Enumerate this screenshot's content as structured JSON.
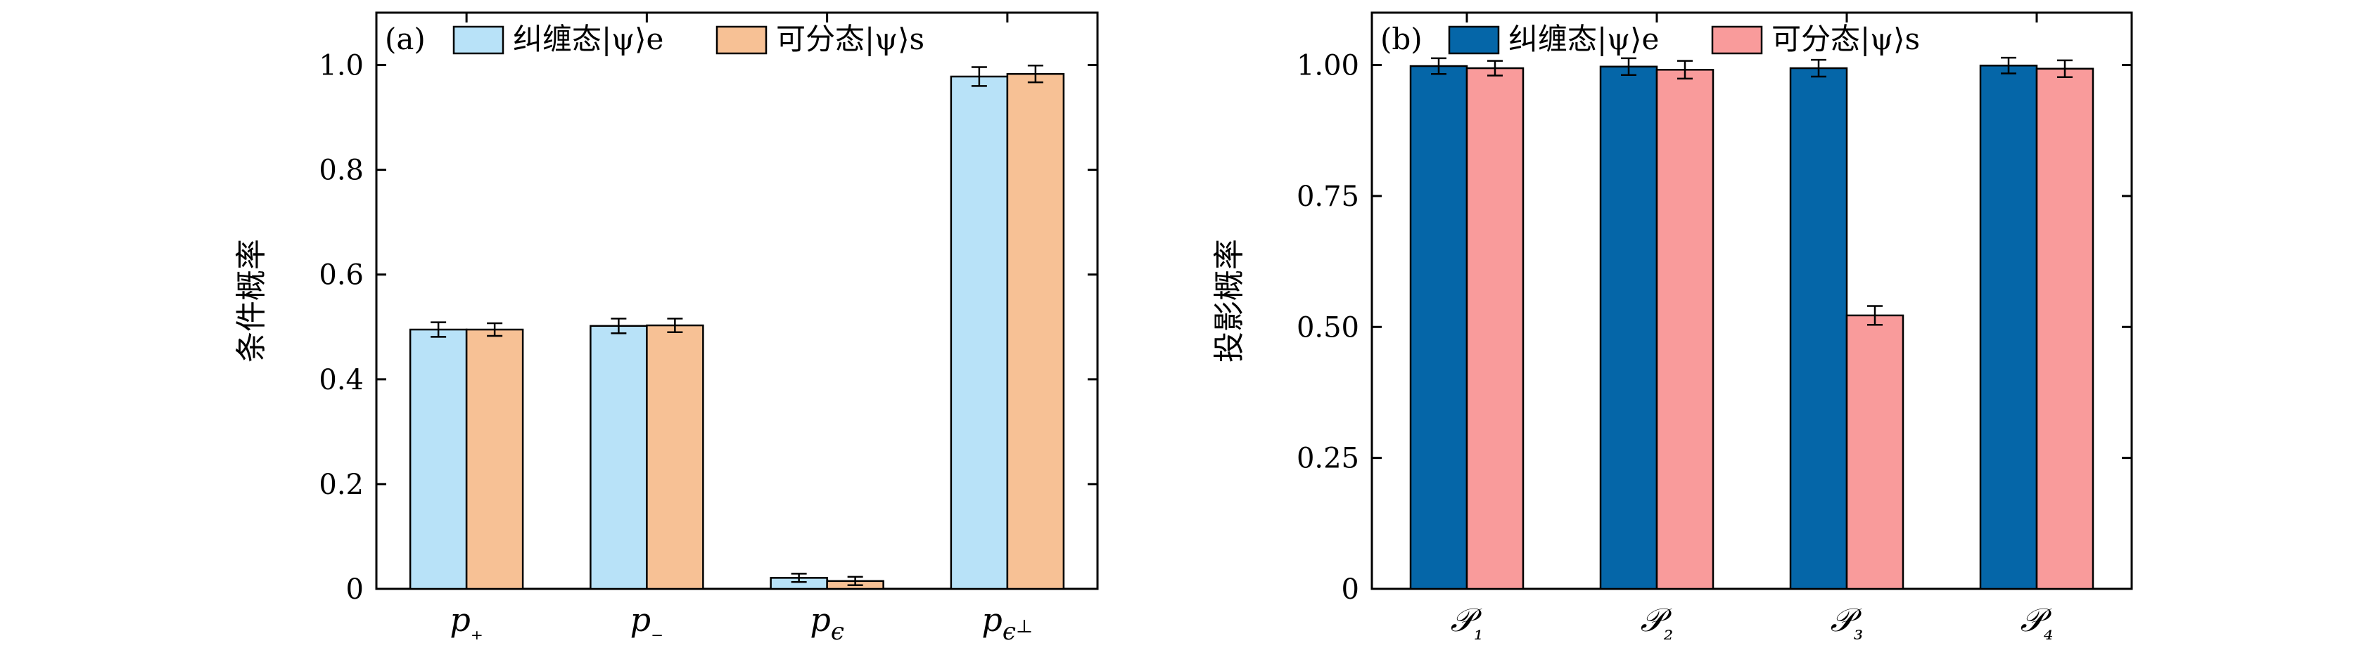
{
  "chart_data": [
    {
      "type": "bar",
      "panel_label": "(a)",
      "ylabel": "条件概率",
      "categories": [
        "p₊",
        "p₋",
        "p_ϵ",
        "p_ϵ⊥"
      ],
      "ylim": [
        0,
        1.1
      ],
      "yticks": [
        "0",
        "0.2",
        "0.4",
        "0.6",
        "0.8",
        "1.0"
      ],
      "ytick_values": [
        0,
        0.2,
        0.4,
        0.6,
        0.8,
        1.0
      ],
      "legend_position": "top-left",
      "grid": false,
      "series": [
        {
          "name": "纠缠态|ψ⟩e",
          "color": "#b8e2f8",
          "values": [
            0.495,
            0.502,
            0.021,
            0.978
          ],
          "errors": [
            0.014,
            0.014,
            0.008,
            0.018
          ]
        },
        {
          "name": "可分态|ψ⟩s",
          "color": "#f7c195",
          "values": [
            0.495,
            0.503,
            0.015,
            0.983
          ],
          "errors": [
            0.012,
            0.013,
            0.008,
            0.016
          ]
        }
      ]
    },
    {
      "type": "bar",
      "panel_label": "(b)",
      "ylabel": "投影概率",
      "categories": [
        "𝒫₁",
        "𝒫₂",
        "𝒫₃",
        "𝒫₄"
      ],
      "ylim": [
        0,
        1.1
      ],
      "yticks": [
        "0",
        "0.25",
        "0.50",
        "0.75",
        "1.00"
      ],
      "ytick_values": [
        0,
        0.25,
        0.5,
        0.75,
        1.0
      ],
      "legend_position": "top-left",
      "grid": false,
      "series": [
        {
          "name": "纠缠态|ψ⟩e",
          "color": "#0566a8",
          "values": [
            0.998,
            0.997,
            0.994,
            0.999
          ],
          "errors": [
            0.015,
            0.016,
            0.016,
            0.015
          ]
        },
        {
          "name": "可分态|ψ⟩s",
          "color": "#f99b9b",
          "values": [
            0.994,
            0.991,
            0.522,
            0.993
          ],
          "errors": [
            0.014,
            0.017,
            0.018,
            0.016
          ]
        }
      ]
    }
  ]
}
